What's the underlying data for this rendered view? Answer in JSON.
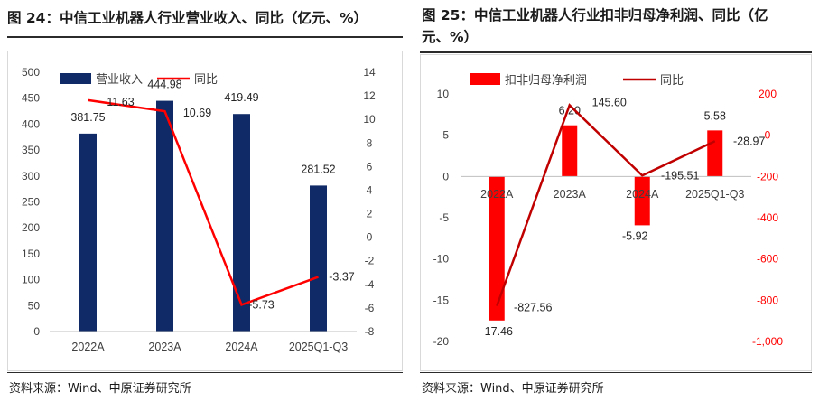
{
  "left_panel": {
    "title": "图 24：中信工业机器人行业营业收入、同比（亿元、%）",
    "source": "资料来源：Wind、中原证券研究所"
  },
  "right_panel": {
    "title_line1": "图 25：中信工业机器人行业扣非归母净利润、同比（亿",
    "title_line2": "元、%）",
    "source": "资料来源：Wind、中原证券研究所"
  },
  "chart_data": [
    {
      "type": "bar",
      "title": "中信工业机器人行业营业收入、同比（亿元、%）",
      "categories": [
        "2022A",
        "2023A",
        "2024A",
        "2025Q1-Q3"
      ],
      "series": [
        {
          "name": "营业收入",
          "kind": "bar",
          "axis": "left",
          "color": "#0f2a66",
          "values": [
            381.75,
            444.98,
            419.49,
            281.52
          ],
          "labels": [
            "381.75",
            "444.98",
            "419.49",
            "281.52"
          ]
        },
        {
          "name": "同比",
          "kind": "line",
          "axis": "right",
          "color": "#ff0000",
          "values": [
            11.63,
            10.69,
            -5.73,
            -3.37
          ],
          "labels": [
            "11.63",
            "10.69",
            "-5.73",
            "-3.37"
          ]
        }
      ],
      "y_left": {
        "min": 0,
        "max": 500,
        "step": 50,
        "ticks": [
          "0",
          "50",
          "100",
          "150",
          "200",
          "250",
          "300",
          "350",
          "400",
          "450",
          "500"
        ]
      },
      "y_right": {
        "min": -8,
        "max": 14,
        "step": 2,
        "ticks": [
          "-8",
          "-6",
          "-4",
          "-2",
          "0",
          "2",
          "4",
          "6",
          "8",
          "10",
          "12",
          "14"
        ]
      },
      "legend": "top-left"
    },
    {
      "type": "bar",
      "title": "中信工业机器人行业扣非归母净利润、同比（亿元、%）",
      "categories": [
        "2022A",
        "2023A",
        "2024A",
        "2025Q1-Q3"
      ],
      "series": [
        {
          "name": "扣非归母净利润",
          "kind": "bar",
          "axis": "left",
          "color": "#ff0000",
          "values": [
            -17.46,
            6.2,
            -5.92,
            5.58
          ],
          "labels": [
            "-17.46",
            "6.20",
            "-5.92",
            "5.58"
          ]
        },
        {
          "name": "同比",
          "kind": "line",
          "axis": "right",
          "color": "#c00000",
          "values": [
            -827.56,
            145.6,
            -195.51,
            -28.97
          ],
          "labels": [
            "-827.56",
            "145.60",
            "-195.51",
            "-28.97"
          ]
        }
      ],
      "y_left": {
        "min": -20,
        "max": 10,
        "step": 5,
        "ticks": [
          "-20",
          "-15",
          "-10",
          "-5",
          "0",
          "5",
          "10"
        ]
      },
      "y_right": {
        "min": -1000,
        "max": 200,
        "step": 200,
        "ticks": [
          "-1,000",
          "-800",
          "-600",
          "-400",
          "-200",
          "0",
          "200"
        ]
      },
      "legend": "top-left"
    }
  ]
}
